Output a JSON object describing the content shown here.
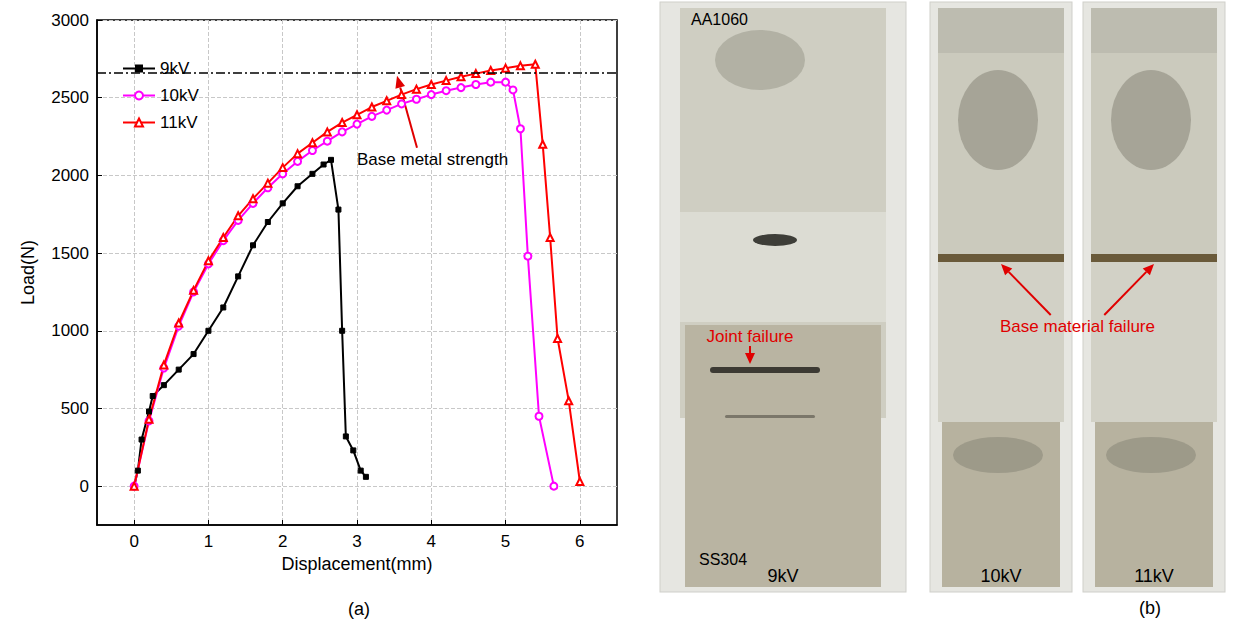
{
  "chart_data": {
    "type": "line",
    "title": "(a)",
    "x_label": "Displacement(mm)",
    "y_label": "Load(N)",
    "xlim": [
      -0.5,
      6.5
    ],
    "xticks": [
      0,
      1,
      2,
      3,
      4,
      5,
      6
    ],
    "ylim": [
      -250,
      3000
    ],
    "yticks": [
      0,
      500,
      1000,
      1500,
      2000,
      2500,
      3000
    ],
    "grid": true,
    "legend": "top-left",
    "reference_line": {
      "value": 2660,
      "label": "Base metal strength"
    },
    "series": [
      {
        "name": "9kV",
        "color": "#000000",
        "marker": "square",
        "x": [
          0,
          0.05,
          0.1,
          0.2,
          0.25,
          0.4,
          0.6,
          0.8,
          1.0,
          1.2,
          1.4,
          1.6,
          1.8,
          2.0,
          2.2,
          2.4,
          2.55,
          2.65,
          2.75,
          2.8,
          2.85,
          2.95,
          3.05,
          3.12
        ],
        "values": [
          0,
          100,
          300,
          480,
          580,
          650,
          750,
          850,
          1000,
          1150,
          1350,
          1550,
          1700,
          1820,
          1930,
          2010,
          2070,
          2100,
          1780,
          1000,
          320,
          230,
          100,
          60
        ]
      },
      {
        "name": "10kV",
        "color": "#ff00ff",
        "marker": "circle",
        "x": [
          0,
          0.2,
          0.4,
          0.6,
          0.8,
          1.0,
          1.2,
          1.4,
          1.6,
          1.8,
          2.0,
          2.2,
          2.4,
          2.6,
          2.8,
          3.0,
          3.2,
          3.4,
          3.6,
          3.8,
          4.0,
          4.2,
          4.4,
          4.6,
          4.8,
          5.0,
          5.1,
          5.2,
          5.3,
          5.45,
          5.65
        ],
        "values": [
          0,
          420,
          760,
          1030,
          1250,
          1430,
          1580,
          1710,
          1820,
          1920,
          2010,
          2090,
          2160,
          2220,
          2280,
          2330,
          2380,
          2420,
          2460,
          2490,
          2520,
          2545,
          2565,
          2585,
          2600,
          2600,
          2550,
          2300,
          1480,
          450,
          0
        ]
      },
      {
        "name": "11kV",
        "color": "#ff0000",
        "marker": "triangle",
        "x": [
          0,
          0.2,
          0.4,
          0.6,
          0.8,
          1.0,
          1.2,
          1.4,
          1.6,
          1.8,
          2.0,
          2.2,
          2.4,
          2.6,
          2.8,
          3.0,
          3.2,
          3.4,
          3.6,
          3.8,
          4.0,
          4.2,
          4.4,
          4.6,
          4.8,
          5.0,
          5.2,
          5.4,
          5.5,
          5.6,
          5.7,
          5.85,
          6.0
        ],
        "values": [
          0,
          430,
          780,
          1050,
          1260,
          1450,
          1600,
          1740,
          1850,
          1950,
          2050,
          2140,
          2210,
          2280,
          2340,
          2390,
          2440,
          2480,
          2520,
          2555,
          2585,
          2610,
          2635,
          2655,
          2675,
          2690,
          2705,
          2715,
          2200,
          1600,
          950,
          550,
          30
        ]
      }
    ]
  },
  "photo_panel": {
    "label": "(b)",
    "top_material": "AA1060",
    "bottom_material": "SS304",
    "specimens": [
      "9kV",
      "10kV",
      "11kV"
    ],
    "annotations": [
      {
        "text": "Joint failure",
        "specimens": [
          "9kV"
        ]
      },
      {
        "text": "Base material failure",
        "specimens": [
          "10kV",
          "11kV"
        ]
      }
    ]
  }
}
